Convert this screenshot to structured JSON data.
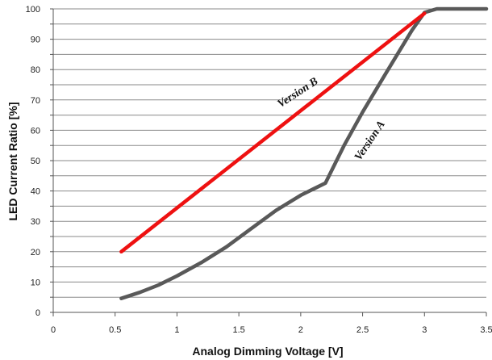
{
  "chart_data": {
    "type": "line",
    "xlabel": "Analog Dimming Voltage  [V]",
    "ylabel": "LED Current Ratio [%]",
    "xlim": [
      0,
      3.5
    ],
    "ylim": [
      0,
      100
    ],
    "x_ticks": [
      "0",
      "0.5",
      "1",
      "1.5",
      "2",
      "2.5",
      "3",
      "3.5"
    ],
    "y_ticks": [
      "0",
      "10",
      "20",
      "30",
      "40",
      "50",
      "60",
      "70",
      "80",
      "90",
      "100"
    ],
    "grid": true,
    "series": [
      {
        "name": "Version A",
        "color": "#595959",
        "points": [
          [
            0.55,
            4.6
          ],
          [
            0.7,
            6.6
          ],
          [
            0.85,
            9.0
          ],
          [
            1.0,
            12.0
          ],
          [
            1.2,
            16.5
          ],
          [
            1.4,
            21.6
          ],
          [
            1.6,
            27.6
          ],
          [
            1.8,
            33.6
          ],
          [
            2.0,
            38.6
          ],
          [
            2.1,
            40.6
          ],
          [
            2.2,
            42.6
          ],
          [
            2.35,
            55.0
          ],
          [
            2.5,
            66.0
          ],
          [
            2.7,
            79.6
          ],
          [
            2.9,
            93.0
          ],
          [
            3.0,
            98.8
          ],
          [
            3.1,
            100.0
          ],
          [
            3.5,
            100.0
          ]
        ]
      },
      {
        "name": "Version B",
        "color": "#ee1111",
        "points": [
          [
            0.55,
            20.0
          ],
          [
            3.0,
            98.5
          ]
        ]
      }
    ],
    "annotations": [
      {
        "text": "Version B",
        "x": 1.99,
        "y": 71.5,
        "angle": -33
      },
      {
        "text": "Version A",
        "x": 2.58,
        "y": 56.0,
        "angle": -56
      }
    ]
  }
}
